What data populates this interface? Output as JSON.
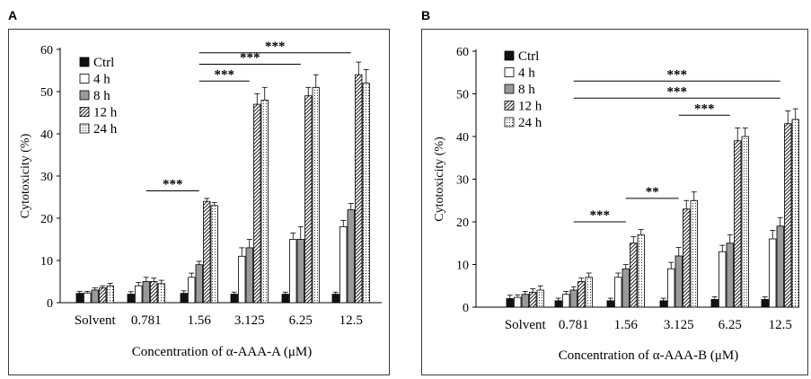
{
  "panels": [
    {
      "letter": "A"
    },
    {
      "letter": "B"
    }
  ],
  "chart_data": [
    {
      "type": "bar",
      "panel": "A",
      "xlabel": "Concentration of α-AAA-A (μM)",
      "ylabel": "Cytotoxicity (%)",
      "ylim": [
        0,
        60
      ],
      "yticks": [
        0,
        10,
        20,
        30,
        40,
        50,
        60
      ],
      "categories": [
        "Solvent",
        "0.781",
        "1.56",
        "3.125",
        "6.25",
        "12.5"
      ],
      "legend_position": "top-left",
      "series": [
        {
          "name": "Ctrl",
          "values": [
            2.2,
            2.0,
            2.2,
            2.0,
            2.0,
            2.0
          ],
          "errors": [
            0.5,
            0.6,
            0.6,
            0.5,
            0.5,
            0.5
          ]
        },
        {
          "name": "4 h",
          "values": [
            2.3,
            4.0,
            6.0,
            11.0,
            15.0,
            18.0
          ],
          "errors": [
            0.4,
            0.8,
            1.0,
            2.0,
            1.5,
            1.5
          ]
        },
        {
          "name": "8 h",
          "values": [
            3.0,
            5.0,
            9.0,
            13.0,
            15.0,
            22.0
          ],
          "errors": [
            0.5,
            1.0,
            0.8,
            2.0,
            3.0,
            1.5
          ]
        },
        {
          "name": "12 h",
          "values": [
            3.5,
            5.0,
            24.0,
            47.0,
            49.0,
            54.0
          ],
          "errors": [
            0.5,
            0.8,
            0.7,
            2.5,
            2.0,
            3.0
          ]
        },
        {
          "name": "24 h",
          "values": [
            4.0,
            4.5,
            23.0,
            48.0,
            51.0,
            52.0
          ],
          "errors": [
            0.6,
            0.8,
            0.7,
            3.0,
            3.0,
            3.2
          ]
        }
      ],
      "significance": [
        {
          "label": "***",
          "from": 1,
          "to": 2,
          "y": 26.5
        },
        {
          "label": "***",
          "from": 2,
          "to": 3,
          "y": 52.5
        },
        {
          "label": "***",
          "from": 2,
          "to": 4,
          "y": 56.5
        },
        {
          "label": "***",
          "from": 2,
          "to": 5,
          "y": 59.2
        }
      ]
    },
    {
      "type": "bar",
      "panel": "B",
      "xlabel": "Concentration of α-AAA-B (μM)",
      "ylabel": "Cytotoxicity (%)",
      "ylim": [
        0,
        60
      ],
      "yticks": [
        0,
        10,
        20,
        30,
        40,
        50,
        60
      ],
      "categories": [
        "Solvent",
        "0.781",
        "1.56",
        "3.125",
        "6.25",
        "12.5"
      ],
      "legend_position": "top-left",
      "series": [
        {
          "name": "Ctrl",
          "values": [
            2.0,
            1.5,
            1.5,
            1.5,
            1.8,
            1.8
          ],
          "errors": [
            0.8,
            0.6,
            0.6,
            0.6,
            0.6,
            0.6
          ]
        },
        {
          "name": "4 h",
          "values": [
            2.3,
            3.0,
            7.0,
            9.0,
            13.0,
            16.0
          ],
          "errors": [
            0.6,
            0.7,
            1.0,
            1.5,
            1.5,
            2.0
          ]
        },
        {
          "name": "8 h",
          "values": [
            3.0,
            4.0,
            9.0,
            12.0,
            15.0,
            19.0
          ],
          "errors": [
            0.7,
            0.8,
            1.0,
            2.0,
            2.0,
            2.0
          ]
        },
        {
          "name": "12 h",
          "values": [
            3.5,
            6.0,
            15.0,
            23.0,
            39.0,
            43.0
          ],
          "errors": [
            0.8,
            0.8,
            1.5,
            2.0,
            3.0,
            3.0
          ]
        },
        {
          "name": "24 h",
          "values": [
            4.0,
            7.0,
            17.0,
            25.0,
            40.0,
            44.0
          ],
          "errors": [
            1.0,
            1.0,
            1.2,
            2.0,
            2.0,
            2.5
          ]
        }
      ],
      "significance": [
        {
          "label": "***",
          "from": 1,
          "to": 2,
          "y": 20.0
        },
        {
          "label": "**",
          "from": 2,
          "to": 3,
          "y": 25.5
        },
        {
          "label": "***",
          "from": 3,
          "to": 4,
          "y": 45.0
        },
        {
          "label": "***",
          "from": 1,
          "to": 5,
          "y": 49.0
        },
        {
          "label": "***",
          "from": 1,
          "to": 5,
          "y": 53.0
        }
      ]
    }
  ]
}
